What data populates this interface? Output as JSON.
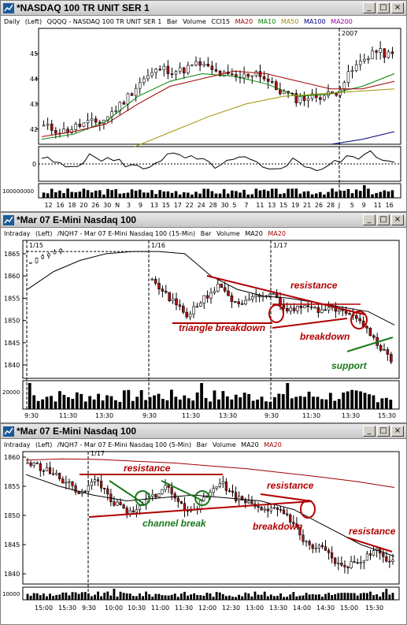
{
  "colors": {
    "ma20": "#a00000",
    "ma10": "#008000",
    "ma50": "#a09000",
    "ma100": "#000080",
    "ma200": "#a000a0",
    "annotation_red": "#b00000",
    "annotation_green": "#1a7a1a",
    "bar_up": "#ffffff",
    "bar_down": "#b01010"
  },
  "windows": [
    {
      "title": "*NASDAQ 100 TR UNIT SER 1",
      "info": [
        "Daily",
        "(Left)",
        "QQQQ - NASDAQ 100 TR UNIT SER 1",
        "Bar",
        "Volume",
        "CCI15",
        "MA20",
        "MA10",
        "MA50",
        "MA100",
        "MA200"
      ],
      "y_ticks": [
        "45",
        "44",
        "43",
        "42"
      ],
      "osc_tick": "0",
      "vol_tick": "100000000",
      "x_ticks": [
        "12",
        "16",
        "18",
        "20",
        "26",
        "30",
        "N",
        "3",
        "9",
        "13",
        "15",
        "17",
        "22",
        "24",
        "28",
        "30",
        "5",
        "7",
        "11",
        "13",
        "15",
        "19",
        "21",
        "26",
        "28",
        "J",
        "5",
        "9",
        "11",
        "16"
      ],
      "year_label": "2007"
    },
    {
      "title": "*Mar 07  E-Mini Nasdaq 100",
      "info": [
        "Intraday",
        "(Left)",
        "/NQH7 - Mar 07 E-Mini Nasdaq 100 (15-Min)",
        "Bar",
        "Volume",
        "MA20",
        "MA20"
      ],
      "y_ticks": [
        "1865",
        "1860",
        "1855",
        "1850",
        "1845",
        "1840"
      ],
      "vol_tick": "20000",
      "x_ticks": [
        "9:30",
        "11:30",
        "13:30",
        "9:30",
        "11:30",
        "13:30",
        "9:30",
        "11:30",
        "13:30",
        "15:30"
      ],
      "date_labels": [
        "1/15",
        "1/16",
        "1/17"
      ],
      "annotations": [
        "resistance",
        "triangle breakdown",
        "breakdown",
        "support"
      ]
    },
    {
      "title": "*Mar 07  E-Mini Nasdaq 100",
      "info": [
        "Intraday",
        "(Left)",
        "/NQH7 - Mar 07 E-Mini Nasdaq 100 (5-Min)",
        "Bar",
        "Volume",
        "MA20",
        "MA20"
      ],
      "y_ticks": [
        "1860",
        "1855",
        "1850",
        "1845",
        "1840"
      ],
      "vol_tick": "10000",
      "x_ticks": [
        "15:00",
        "15:30",
        "9:30",
        "10:00",
        "10:30",
        "11:00",
        "11:30",
        "12:00",
        "12:30",
        "13:00",
        "13:30",
        "14:00",
        "14:30",
        "15:00",
        "15:30"
      ],
      "date_labels": [
        "1/17"
      ],
      "annotations": [
        "resistance",
        "channel break",
        "resistance",
        "breakdown",
        "resistance"
      ]
    }
  ],
  "window_buttons": {
    "minimize": "_",
    "maximize": "□",
    "close": "×"
  }
}
